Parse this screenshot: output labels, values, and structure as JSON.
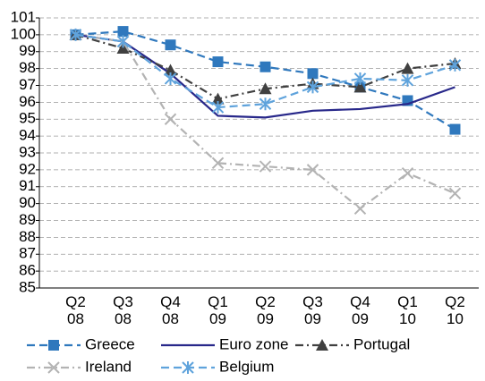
{
  "chart_data": {
    "type": "line",
    "categories": [
      "Q2\n08",
      "Q3\n08",
      "Q4\n08",
      "Q1\n09",
      "Q2\n09",
      "Q3\n09",
      "Q4\n09",
      "Q1\n10",
      "Q2\n10"
    ],
    "series": [
      {
        "name": "Greece",
        "color": "#2f78bd",
        "marker": "square",
        "dash": "dashed",
        "values": [
          100,
          100.2,
          99.4,
          98.4,
          98.1,
          97.7,
          96.9,
          96.1,
          94.4
        ]
      },
      {
        "name": "Euro zone",
        "color": "#28288a",
        "marker": "none",
        "dash": "solid",
        "values": [
          100,
          99.6,
          97.7,
          95.2,
          95.1,
          95.5,
          95.6,
          95.9,
          96.9
        ]
      },
      {
        "name": "Portugal",
        "color": "#404040",
        "marker": "triangle",
        "dash": "dashdot",
        "values": [
          100,
          99.2,
          97.9,
          96.2,
          96.8,
          97.1,
          96.9,
          98.0,
          98.3
        ]
      },
      {
        "name": "Ireland",
        "color": "#b3b3b3",
        "marker": "x",
        "dash": "dashdot",
        "values": [
          100,
          99.6,
          95.0,
          92.4,
          92.2,
          92.0,
          89.7,
          91.8,
          90.6
        ]
      },
      {
        "name": "Belgium",
        "color": "#5fa3dc",
        "marker": "asterisk",
        "dash": "dashed",
        "values": [
          100,
          99.6,
          97.4,
          95.7,
          95.9,
          96.9,
          97.4,
          97.3,
          98.2
        ]
      }
    ],
    "ylim": [
      85,
      101
    ],
    "yticks": [
      85,
      86,
      87,
      88,
      89,
      90,
      91,
      92,
      93,
      94,
      95,
      96,
      97,
      98,
      99,
      100,
      101
    ],
    "grid": true,
    "legend": "bottom"
  }
}
